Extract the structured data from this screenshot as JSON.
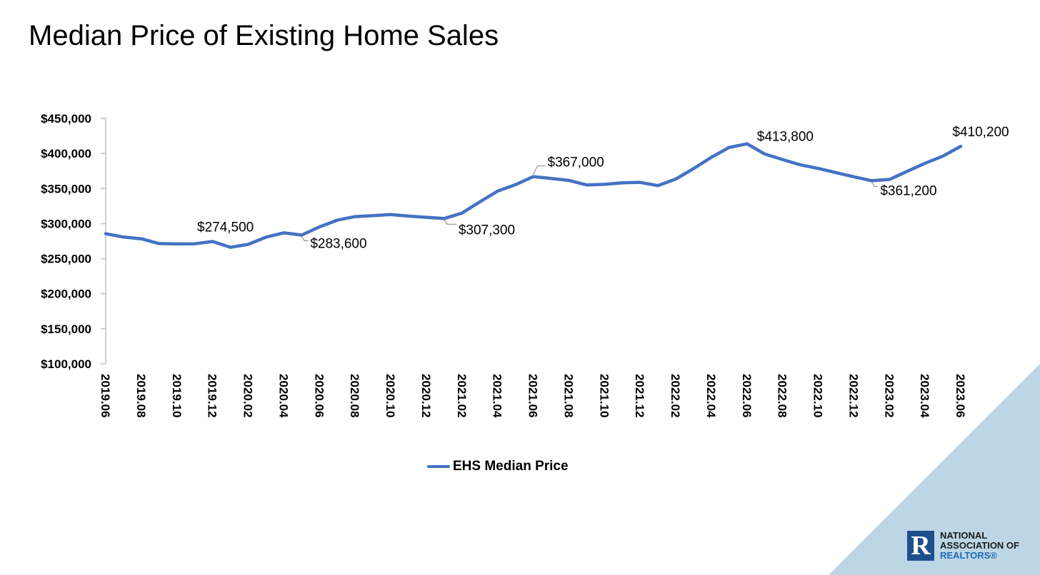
{
  "title": "Median Price of Existing Home Sales",
  "colors": {
    "series": "#4472c4",
    "accent_triangle": "#bdd6e6",
    "logo_blue": "#1f4e8c"
  },
  "legend": {
    "label": "EHS Median Price",
    "placement": "bottom-center"
  },
  "logo": {
    "icon": "realtor-r-logo-icon",
    "line1": "NATIONAL",
    "line2": "ASSOCIATION OF",
    "line3": "REALTORS®"
  },
  "chart_data": {
    "type": "line",
    "title": "Median Price of Existing Home Sales",
    "ylim": [
      100000,
      450000
    ],
    "y_ticks": [
      "$100,000",
      "$150,000",
      "$200,000",
      "$250,000",
      "$300,000",
      "$350,000",
      "$400,000",
      "$450,000"
    ],
    "x_tick_labels": [
      "2019.06",
      "2019.08",
      "2019.10",
      "2019.12",
      "2020.02",
      "2020.04",
      "2020.06",
      "2020.08",
      "2020.10",
      "2020.12",
      "2021.02",
      "2021.04",
      "2021.06",
      "2021.08",
      "2021.10",
      "2021.12",
      "2022.02",
      "2022.04",
      "2022.06",
      "2022.08",
      "2022.10",
      "2022.12",
      "2023.02",
      "2023.04",
      "2023.06"
    ],
    "grid": false,
    "series": [
      {
        "name": "EHS Median Price",
        "x": [
          "2019.06",
          "2019.07",
          "2019.08",
          "2019.09",
          "2019.10",
          "2019.11",
          "2019.12",
          "2020.01",
          "2020.02",
          "2020.03",
          "2020.04",
          "2020.05",
          "2020.06",
          "2020.07",
          "2020.08",
          "2020.09",
          "2020.10",
          "2020.11",
          "2020.12",
          "2021.01",
          "2021.02",
          "2021.03",
          "2021.04",
          "2021.05",
          "2021.06",
          "2021.07",
          "2021.08",
          "2021.09",
          "2021.10",
          "2021.11",
          "2021.12",
          "2022.01",
          "2022.02",
          "2022.03",
          "2022.04",
          "2022.05",
          "2022.06",
          "2022.07",
          "2022.08",
          "2022.09",
          "2022.10",
          "2022.11",
          "2022.12",
          "2023.01",
          "2023.02",
          "2023.03",
          "2023.04",
          "2023.05",
          "2023.06"
        ],
        "values": [
          285600,
          280800,
          278400,
          271500,
          271000,
          271200,
          274500,
          266300,
          270400,
          280700,
          286800,
          283600,
          295300,
          304900,
          310000,
          311300,
          313000,
          310700,
          309000,
          307300,
          315000,
          331000,
          346300,
          355500,
          367000,
          364400,
          361600,
          355200,
          356000,
          358200,
          358800,
          354200,
          363500,
          378400,
          394500,
          408600,
          413800,
          399200,
          391400,
          383800,
          378700,
          372700,
          366800,
          361200,
          363000,
          374600,
          386100,
          396300,
          410200
        ]
      }
    ],
    "annotations": [
      {
        "x": "2019.12",
        "label": "$274,500"
      },
      {
        "x": "2020.05",
        "label": "$283,600"
      },
      {
        "x": "2021.01",
        "label": "$307,300"
      },
      {
        "x": "2021.06",
        "label": "$367,000"
      },
      {
        "x": "2022.06",
        "label": "$413,800"
      },
      {
        "x": "2023.01",
        "label": "$361,200"
      },
      {
        "x": "2023.06",
        "label": "$410,200"
      }
    ]
  }
}
